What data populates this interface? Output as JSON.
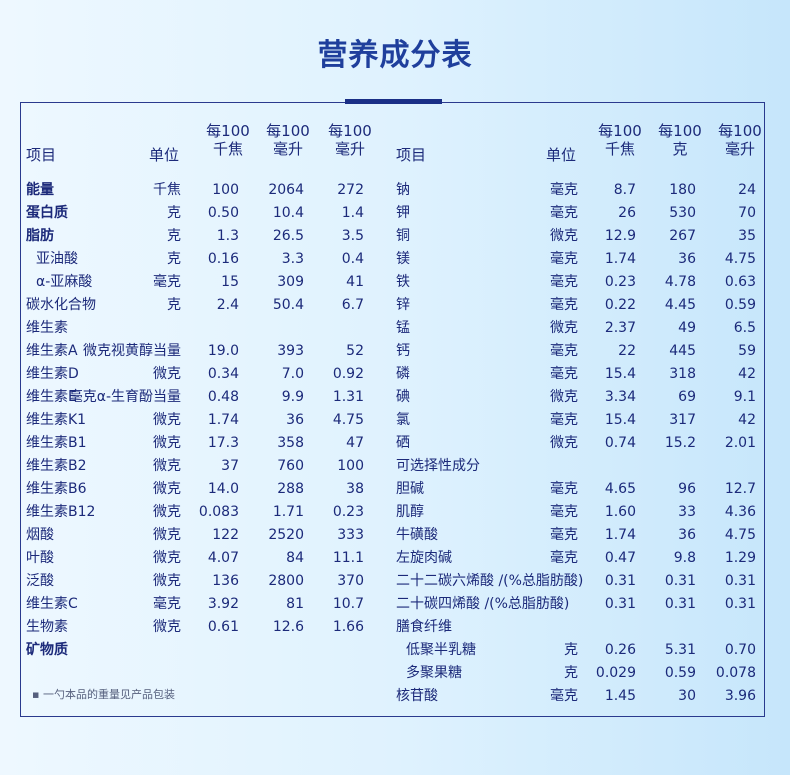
{
  "title": "营养成分表",
  "headers": {
    "item": "项目",
    "unit": "单位",
    "per_kj": "每100\n千焦",
    "per_ml": "每100\n毫升",
    "per_100ml": "每100\n毫升",
    "per_g": "每100\n克"
  },
  "left_headers": [
    "每100\n千焦",
    "每100\n毫升",
    "每100\n毫升"
  ],
  "right_headers": [
    "每100\n千焦",
    "每100\n克",
    "每100\n毫升"
  ],
  "left_rows": [
    {
      "name": "能量",
      "unit": "千焦",
      "v": [
        "100",
        "2064",
        "272"
      ],
      "bold": true
    },
    {
      "name": "蛋白质",
      "unit": "克",
      "v": [
        "0.50",
        "10.4",
        "1.4"
      ],
      "bold": true
    },
    {
      "name": "脂肪",
      "unit": "克",
      "v": [
        "1.3",
        "26.5",
        "3.5"
      ],
      "bold": true
    },
    {
      "name": "亚油酸",
      "unit": "克",
      "v": [
        "0.16",
        "3.3",
        "0.4"
      ],
      "indent": true
    },
    {
      "name": "α-亚麻酸",
      "unit": "毫克",
      "v": [
        "15",
        "309",
        "41"
      ],
      "indent": true
    },
    {
      "name": "碳水化合物",
      "unit": "克",
      "v": [
        "2.4",
        "50.4",
        "6.7"
      ]
    },
    {
      "name": "维生素",
      "unit": "",
      "v": [
        "",
        "",
        ""
      ]
    },
    {
      "name": "维生素A",
      "unit": "微克视黄醇当量",
      "v": [
        "19.0",
        "393",
        "52"
      ]
    },
    {
      "name": "维生素D",
      "unit": "微克",
      "v": [
        "0.34",
        "7.0",
        "0.92"
      ]
    },
    {
      "name": "维生素E",
      "unit": "毫克α-生育酚当量",
      "v": [
        "0.48",
        "9.9",
        "1.31"
      ]
    },
    {
      "name": "维生素K1",
      "unit": "微克",
      "v": [
        "1.74",
        "36",
        "4.75"
      ]
    },
    {
      "name": "维生素B1",
      "unit": "微克",
      "v": [
        "17.3",
        "358",
        "47"
      ]
    },
    {
      "name": "维生素B2",
      "unit": "微克",
      "v": [
        "37",
        "760",
        "100"
      ]
    },
    {
      "name": "维生素B6",
      "unit": "微克",
      "v": [
        "14.0",
        "288",
        "38"
      ]
    },
    {
      "name": "维生素B12",
      "unit": "微克",
      "v": [
        "0.083",
        "1.71",
        "0.23"
      ]
    },
    {
      "name": "烟酸",
      "unit": "微克",
      "v": [
        "122",
        "2520",
        "333"
      ]
    },
    {
      "name": "叶酸",
      "unit": "微克",
      "v": [
        "4.07",
        "84",
        "11.1"
      ]
    },
    {
      "name": "泛酸",
      "unit": "微克",
      "v": [
        "136",
        "2800",
        "370"
      ]
    },
    {
      "name": "维生素C",
      "unit": "毫克",
      "v": [
        "3.92",
        "81",
        "10.7"
      ]
    },
    {
      "name": "生物素",
      "unit": "微克",
      "v": [
        "0.61",
        "12.6",
        "1.66"
      ]
    },
    {
      "name": "矿物质",
      "unit": "",
      "v": [
        "",
        "",
        ""
      ],
      "bold": true
    }
  ],
  "right_rows": [
    {
      "name": "钠",
      "unit": "毫克",
      "v": [
        "8.7",
        "180",
        "24"
      ]
    },
    {
      "name": "钾",
      "unit": "毫克",
      "v": [
        "26",
        "530",
        "70"
      ]
    },
    {
      "name": "铜",
      "unit": "微克",
      "v": [
        "12.9",
        "267",
        "35"
      ]
    },
    {
      "name": "镁",
      "unit": "毫克",
      "v": [
        "1.74",
        "36",
        "4.75"
      ]
    },
    {
      "name": "铁",
      "unit": "毫克",
      "v": [
        "0.23",
        "4.78",
        "0.63"
      ]
    },
    {
      "name": "锌",
      "unit": "毫克",
      "v": [
        "0.22",
        "4.45",
        "0.59"
      ]
    },
    {
      "name": "锰",
      "unit": "微克",
      "v": [
        "2.37",
        "49",
        "6.5"
      ]
    },
    {
      "name": "钙",
      "unit": "毫克",
      "v": [
        "22",
        "445",
        "59"
      ]
    },
    {
      "name": "磷",
      "unit": "毫克",
      "v": [
        "15.4",
        "318",
        "42"
      ]
    },
    {
      "name": "碘",
      "unit": "微克",
      "v": [
        "3.34",
        "69",
        "9.1"
      ]
    },
    {
      "name": "氯",
      "unit": "毫克",
      "v": [
        "15.4",
        "317",
        "42"
      ]
    },
    {
      "name": "硒",
      "unit": "微克",
      "v": [
        "0.74",
        "15.2",
        "2.01"
      ]
    },
    {
      "name": "可选择性成分",
      "unit": "",
      "v": [
        "",
        "",
        ""
      ]
    },
    {
      "name": "胆碱",
      "unit": "毫克",
      "v": [
        "4.65",
        "96",
        "12.7"
      ]
    },
    {
      "name": "肌醇",
      "unit": "毫克",
      "v": [
        "1.60",
        "33",
        "4.36"
      ]
    },
    {
      "name": "牛磺酸",
      "unit": "毫克",
      "v": [
        "1.74",
        "36",
        "4.75"
      ]
    },
    {
      "name": "左旋肉碱",
      "unit": "毫克",
      "v": [
        "0.47",
        "9.8",
        "1.29"
      ]
    },
    {
      "name": "二十二碳六烯酸 /(%总脂肪酸)",
      "unit": "",
      "v": [
        "0.31",
        "0.31",
        "0.31"
      ]
    },
    {
      "name": "二十碳四烯酸 /(%总脂肪酸)",
      "unit": "",
      "v": [
        "0.31",
        "0.31",
        "0.31"
      ]
    },
    {
      "name": "膳食纤维",
      "unit": "",
      "v": [
        "",
        "",
        ""
      ]
    },
    {
      "name": "低聚半乳糖",
      "unit": "克",
      "v": [
        "0.26",
        "5.31",
        "0.70"
      ],
      "indent": true
    },
    {
      "name": "多聚果糖",
      "unit": "克",
      "v": [
        "0.029",
        "0.59",
        "0.078"
      ],
      "indent": true
    },
    {
      "name": "核苷酸",
      "unit": "毫克",
      "v": [
        "1.45",
        "30",
        "3.96"
      ]
    }
  ],
  "footnote": "▪ 一勺本品的重量见产品包装"
}
